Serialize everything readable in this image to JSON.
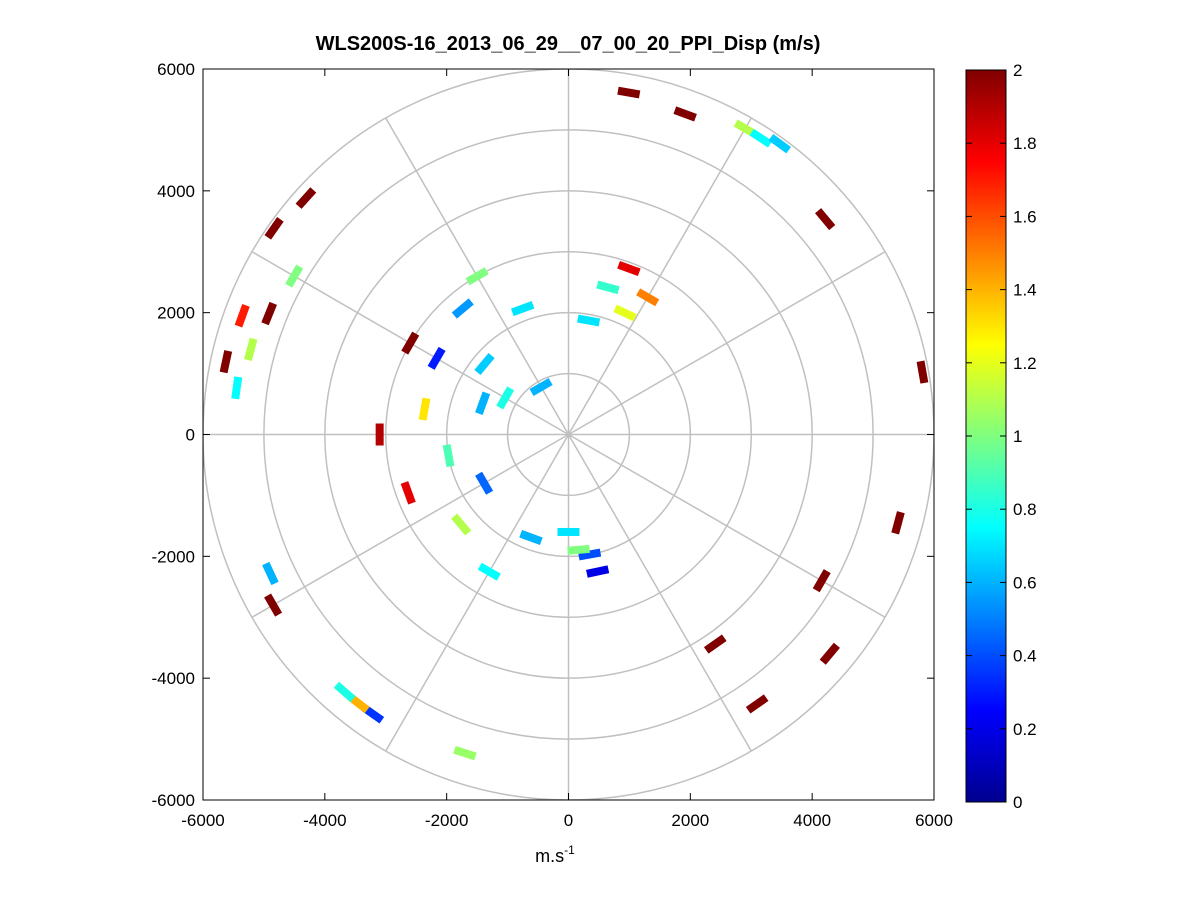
{
  "chart_data": {
    "type": "polar-scatter",
    "title": "WLS200S-16_2013_06_29__07_00_20_PPI_Disp (m/s)",
    "xlabel": "m.s",
    "xlabel_superscript": "-1",
    "ylabel": "",
    "xlim": [
      -6000,
      6000
    ],
    "ylim": [
      -6000,
      6000
    ],
    "x_ticks": [
      -6000,
      -4000,
      -2000,
      0,
      2000,
      4000,
      6000
    ],
    "y_ticks": [
      -6000,
      -4000,
      -2000,
      0,
      2000,
      4000,
      6000
    ],
    "x_tick_labels": [
      "-6000",
      "-4000",
      "-2000",
      "0",
      "2000",
      "4000",
      "6000"
    ],
    "y_tick_labels": [
      "-6000",
      "-4000",
      "-2000",
      "0",
      "2000",
      "4000",
      "6000"
    ],
    "polar_grid": {
      "rings": [
        1000,
        2000,
        3000,
        4000,
        5000,
        6000
      ],
      "spokes_deg": [
        0,
        30,
        60,
        90,
        120,
        150,
        180,
        210,
        240,
        270,
        300,
        330
      ]
    },
    "colorbar": {
      "colormap": "jet",
      "range": [
        0,
        2
      ],
      "ticks": [
        0,
        0.2,
        0.4,
        0.6,
        0.8,
        1,
        1.2,
        1.4,
        1.6,
        1.8,
        2
      ],
      "tick_labels": [
        "0",
        "0.2",
        "0.4",
        "0.6",
        "0.8",
        "1",
        "1.2",
        "1.4",
        "1.6",
        "1.8",
        "2"
      ]
    },
    "cells": [
      {
        "r": 5900,
        "az": 305,
        "v": 2.0
      },
      {
        "r": 5800,
        "az": 312,
        "v": 2.0
      },
      {
        "r": 5750,
        "az": 282,
        "v": 2.0
      },
      {
        "r": 5700,
        "az": 290,
        "v": 1.7
      },
      {
        "r": 5500,
        "az": 278,
        "v": 0.75
      },
      {
        "r": 5400,
        "az": 285,
        "v": 1.1
      },
      {
        "r": 5300,
        "az": 292,
        "v": 2.0
      },
      {
        "r": 5200,
        "az": 300,
        "v": 1.0
      },
      {
        "r": 5600,
        "az": 240,
        "v": 2.0
      },
      {
        "r": 5400,
        "az": 245,
        "v": 0.6
      },
      {
        "r": 5600,
        "az": 215,
        "v": 0.35
      },
      {
        "r": 5600,
        "az": 218,
        "v": 1.4
      },
      {
        "r": 5600,
        "az": 221,
        "v": 0.8
      },
      {
        "r": 5500,
        "az": 198,
        "v": 1.05
      },
      {
        "r": 5800,
        "az": 30,
        "v": 1.1
      },
      {
        "r": 5800,
        "az": 33,
        "v": 0.75
      },
      {
        "r": 5900,
        "az": 36,
        "v": 0.65
      },
      {
        "r": 5700,
        "az": 10,
        "v": 2.0
      },
      {
        "r": 5600,
        "az": 20,
        "v": 2.0
      },
      {
        "r": 5500,
        "az": 50,
        "v": 2.0
      },
      {
        "r": 5900,
        "az": 80,
        "v": 2.0
      },
      {
        "r": 5600,
        "az": 105,
        "v": 2.0
      },
      {
        "r": 5600,
        "az": 130,
        "v": 2.0
      },
      {
        "r": 5400,
        "az": 145,
        "v": 2.0
      },
      {
        "r": 4800,
        "az": 120,
        "v": 2.0
      },
      {
        "r": 4200,
        "az": 145,
        "v": 2.0
      },
      {
        "r": 3000,
        "az": 330,
        "v": 1.0
      },
      {
        "r": 2700,
        "az": 320,
        "v": 0.55
      },
      {
        "r": 2500,
        "az": 300,
        "v": 0.3
      },
      {
        "r": 2200,
        "az": 340,
        "v": 0.7
      },
      {
        "r": 1800,
        "az": 310,
        "v": 0.65
      },
      {
        "r": 1500,
        "az": 290,
        "v": 0.6
      },
      {
        "r": 1200,
        "az": 300,
        "v": 0.8
      },
      {
        "r": 900,
        "az": 330,
        "v": 0.6
      },
      {
        "r": 2400,
        "az": 280,
        "v": 1.3
      },
      {
        "r": 2000,
        "az": 260,
        "v": 0.9
      },
      {
        "r": 1600,
        "az": 240,
        "v": 0.45
      },
      {
        "r": 2300,
        "az": 230,
        "v": 1.1
      },
      {
        "r": 2600,
        "az": 210,
        "v": 0.75
      },
      {
        "r": 1800,
        "az": 200,
        "v": 0.6
      },
      {
        "r": 2800,
        "az": 250,
        "v": 1.8
      },
      {
        "r": 3100,
        "az": 270,
        "v": 1.9
      },
      {
        "r": 3000,
        "az": 300,
        "v": 2.0
      },
      {
        "r": 2900,
        "az": 20,
        "v": 1.8
      },
      {
        "r": 2500,
        "az": 15,
        "v": 0.85
      },
      {
        "r": 2200,
        "az": 25,
        "v": 1.2
      },
      {
        "r": 1900,
        "az": 10,
        "v": 0.7
      },
      {
        "r": 2600,
        "az": 30,
        "v": 1.5
      },
      {
        "r": 2000,
        "az": 170,
        "v": 0.4
      },
      {
        "r": 2300,
        "az": 168,
        "v": 0.2
      },
      {
        "r": 1900,
        "az": 175,
        "v": 1.0
      },
      {
        "r": 1600,
        "az": 180,
        "v": 0.7
      }
    ]
  }
}
